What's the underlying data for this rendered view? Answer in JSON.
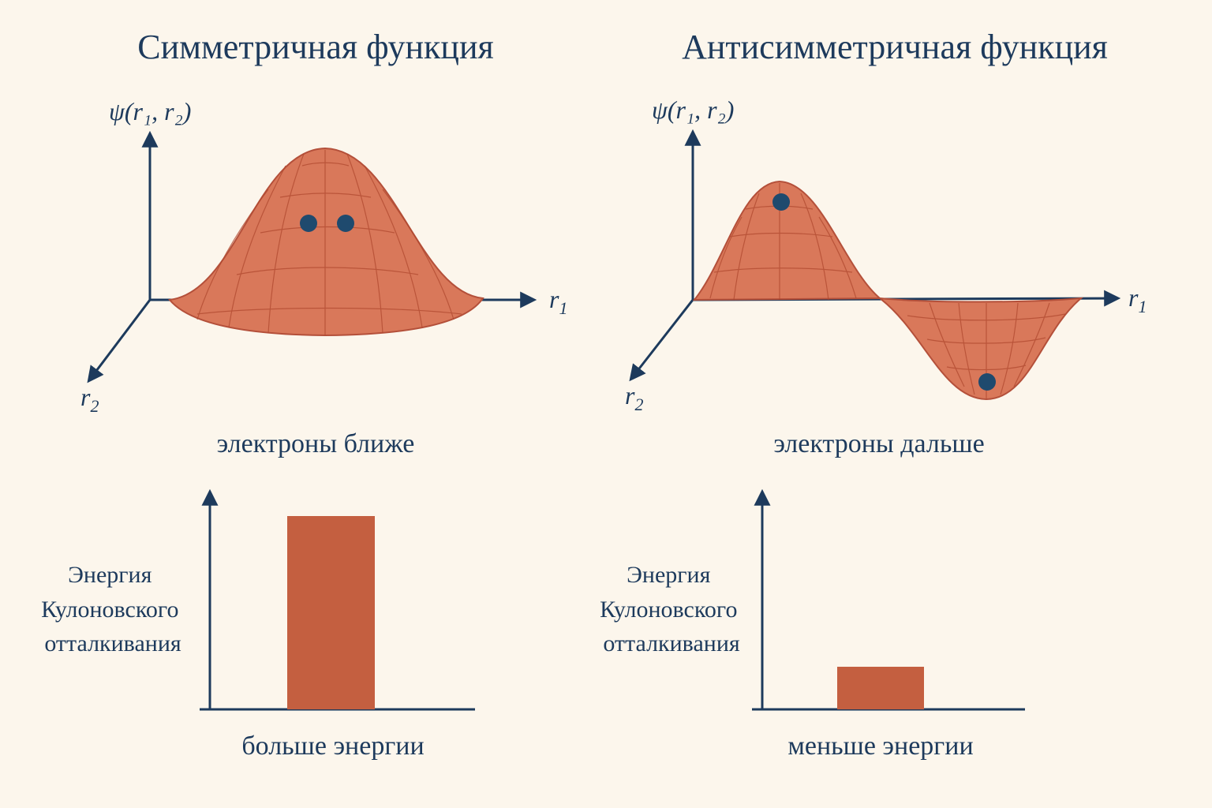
{
  "panels": {
    "symmetric": {
      "title": "Симметричная функция",
      "psi_label": "ψ(r₁, r₂)",
      "r1_label": "r",
      "r1_sub": "1",
      "r2_label": "r",
      "r2_sub": "2",
      "caption": "электроны ближе",
      "energy_label_lines": [
        "Энергия",
        "Кулоновского",
        "отталкивания"
      ],
      "energy_caption": "больше энергии"
    },
    "antisymmetric": {
      "title": "Антисимметричная функция",
      "psi_label": "ψ(r₁, r₂)",
      "r1_label": "r",
      "r1_sub": "1",
      "r2_label": "r",
      "r2_sub": "2",
      "caption": "электроны дальше",
      "energy_label_lines": [
        "Энергия",
        "Кулоновского",
        "отталкивания"
      ],
      "energy_caption": "меньше энергии"
    }
  },
  "energy_levels": {
    "symmetric": 0.87,
    "antisymmetric": 0.19
  },
  "colors": {
    "background": "#fcf6ec",
    "ink": "#1d3a5c",
    "surface": "#d9785a",
    "bar": "#c45f40",
    "electron": "#1f4a6e"
  }
}
